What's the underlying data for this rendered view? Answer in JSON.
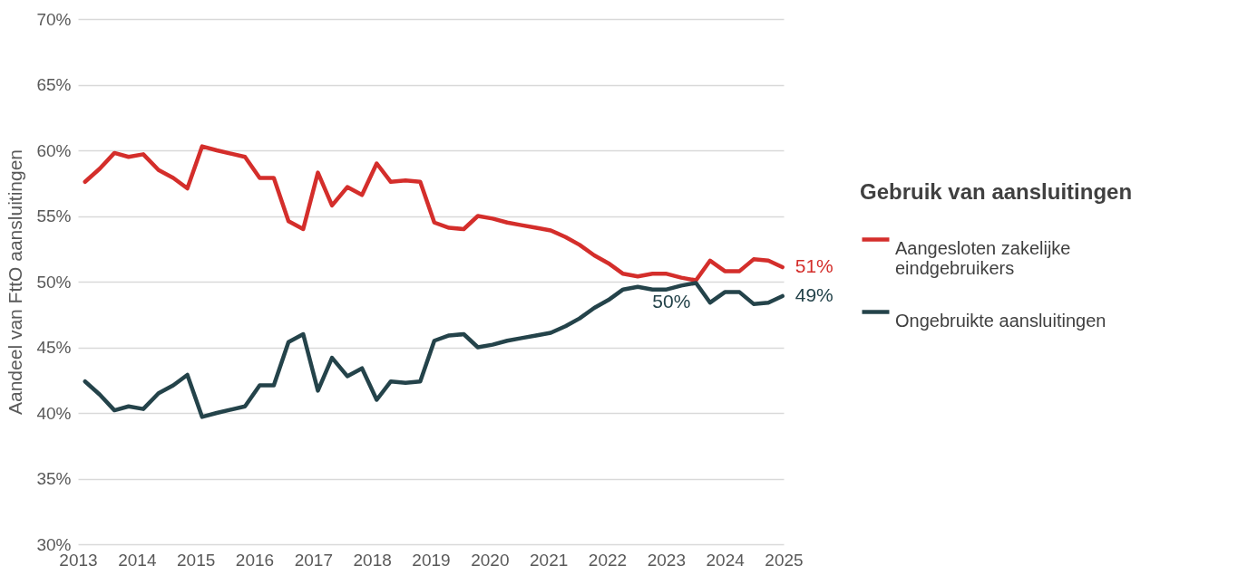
{
  "chart_data": {
    "type": "line",
    "xlabel": null,
    "ylabel": "Aandeel van FttO aansluitingen",
    "legend_title": "Gebruik van aansluitingen",
    "legend": "right",
    "grid": "y",
    "line_style": "solid",
    "marker": "none",
    "xlim": [
      2013,
      2025
    ],
    "xticks": [
      2013,
      2014,
      2015,
      2016,
      2017,
      2018,
      2019,
      2020,
      2021,
      2022,
      2023,
      2024,
      2025
    ],
    "ylim": [
      30,
      70
    ],
    "yticks": [
      {
        "value": 30,
        "label": "30%"
      },
      {
        "value": 35,
        "label": "35%"
      },
      {
        "value": 40,
        "label": "40%"
      },
      {
        "value": 45,
        "label": "45%"
      },
      {
        "value": 50,
        "label": "50%"
      },
      {
        "value": 55,
        "label": "55%"
      },
      {
        "value": 60,
        "label": "60%"
      },
      {
        "value": 65,
        "label": "65%"
      },
      {
        "value": 70,
        "label": "70%"
      }
    ],
    "x": [
      2013.12,
      2013.37,
      2013.62,
      2013.86,
      2014.11,
      2014.37,
      2014.62,
      2014.86,
      2015.11,
      2015.36,
      2015.84,
      2016.09,
      2016.33,
      2016.58,
      2016.83,
      2017.08,
      2017.32,
      2017.58,
      2017.83,
      2018.08,
      2018.32,
      2018.57,
      2018.82,
      2019.06,
      2019.31,
      2019.56,
      2019.8,
      2020.05,
      2020.3,
      2020.54,
      2020.79,
      2021.04,
      2021.29,
      2021.53,
      2021.78,
      2022.02,
      2022.27,
      2022.52,
      2022.77,
      2023.01,
      2023.26,
      2023.51,
      2023.75,
      2024.0,
      2024.25,
      2024.49,
      2024.74,
      2024.98
    ],
    "series": [
      {
        "name": "Aangesloten zakelijke eindgebruikers",
        "color": "#d42e2b",
        "values": [
          57.6,
          58.6,
          59.8,
          59.5,
          59.7,
          58.5,
          57.9,
          57.1,
          60.3,
          60.0,
          59.5,
          57.9,
          57.9,
          54.6,
          54.0,
          58.3,
          55.8,
          57.2,
          56.6,
          59.0,
          57.6,
          57.7,
          57.6,
          54.5,
          54.1,
          54.0,
          55.0,
          54.8,
          54.5,
          54.3,
          54.1,
          53.9,
          53.4,
          52.8,
          52.0,
          51.4,
          50.6,
          50.4,
          50.6,
          50.6,
          50.3,
          50.1,
          51.6,
          50.8,
          50.8,
          51.7,
          51.6,
          51.1
        ],
        "value_labels": [
          null,
          null,
          null,
          null,
          null,
          null,
          null,
          null,
          null,
          null,
          null,
          null,
          null,
          null,
          null,
          null,
          null,
          null,
          null,
          null,
          null,
          null,
          null,
          null,
          null,
          null,
          null,
          null,
          null,
          null,
          null,
          null,
          null,
          null,
          null,
          null,
          null,
          null,
          null,
          null,
          null,
          null,
          null,
          null,
          null,
          null,
          null,
          "51%"
        ]
      },
      {
        "name": "Ongebruikte aansluitingen",
        "color": "#24434a",
        "values": [
          42.4,
          41.4,
          40.2,
          40.5,
          40.3,
          41.5,
          42.1,
          42.9,
          39.7,
          40.0,
          40.5,
          42.1,
          42.1,
          45.4,
          46.0,
          41.7,
          44.2,
          42.8,
          43.4,
          41.0,
          42.4,
          42.3,
          42.4,
          45.5,
          45.9,
          46.0,
          45.0,
          45.2,
          45.5,
          45.7,
          45.9,
          46.1,
          46.6,
          47.2,
          48.0,
          48.6,
          49.4,
          49.6,
          49.4,
          49.4,
          49.7,
          49.9,
          48.4,
          49.2,
          49.2,
          48.3,
          48.4,
          48.9
        ],
        "value_labels": [
          null,
          null,
          null,
          null,
          null,
          null,
          null,
          null,
          null,
          null,
          null,
          null,
          null,
          null,
          null,
          null,
          null,
          null,
          null,
          null,
          null,
          null,
          null,
          null,
          null,
          null,
          null,
          null,
          null,
          null,
          null,
          null,
          null,
          null,
          null,
          null,
          null,
          null,
          null,
          null,
          null,
          "50%",
          null,
          null,
          null,
          null,
          null,
          "49%"
        ]
      }
    ]
  }
}
